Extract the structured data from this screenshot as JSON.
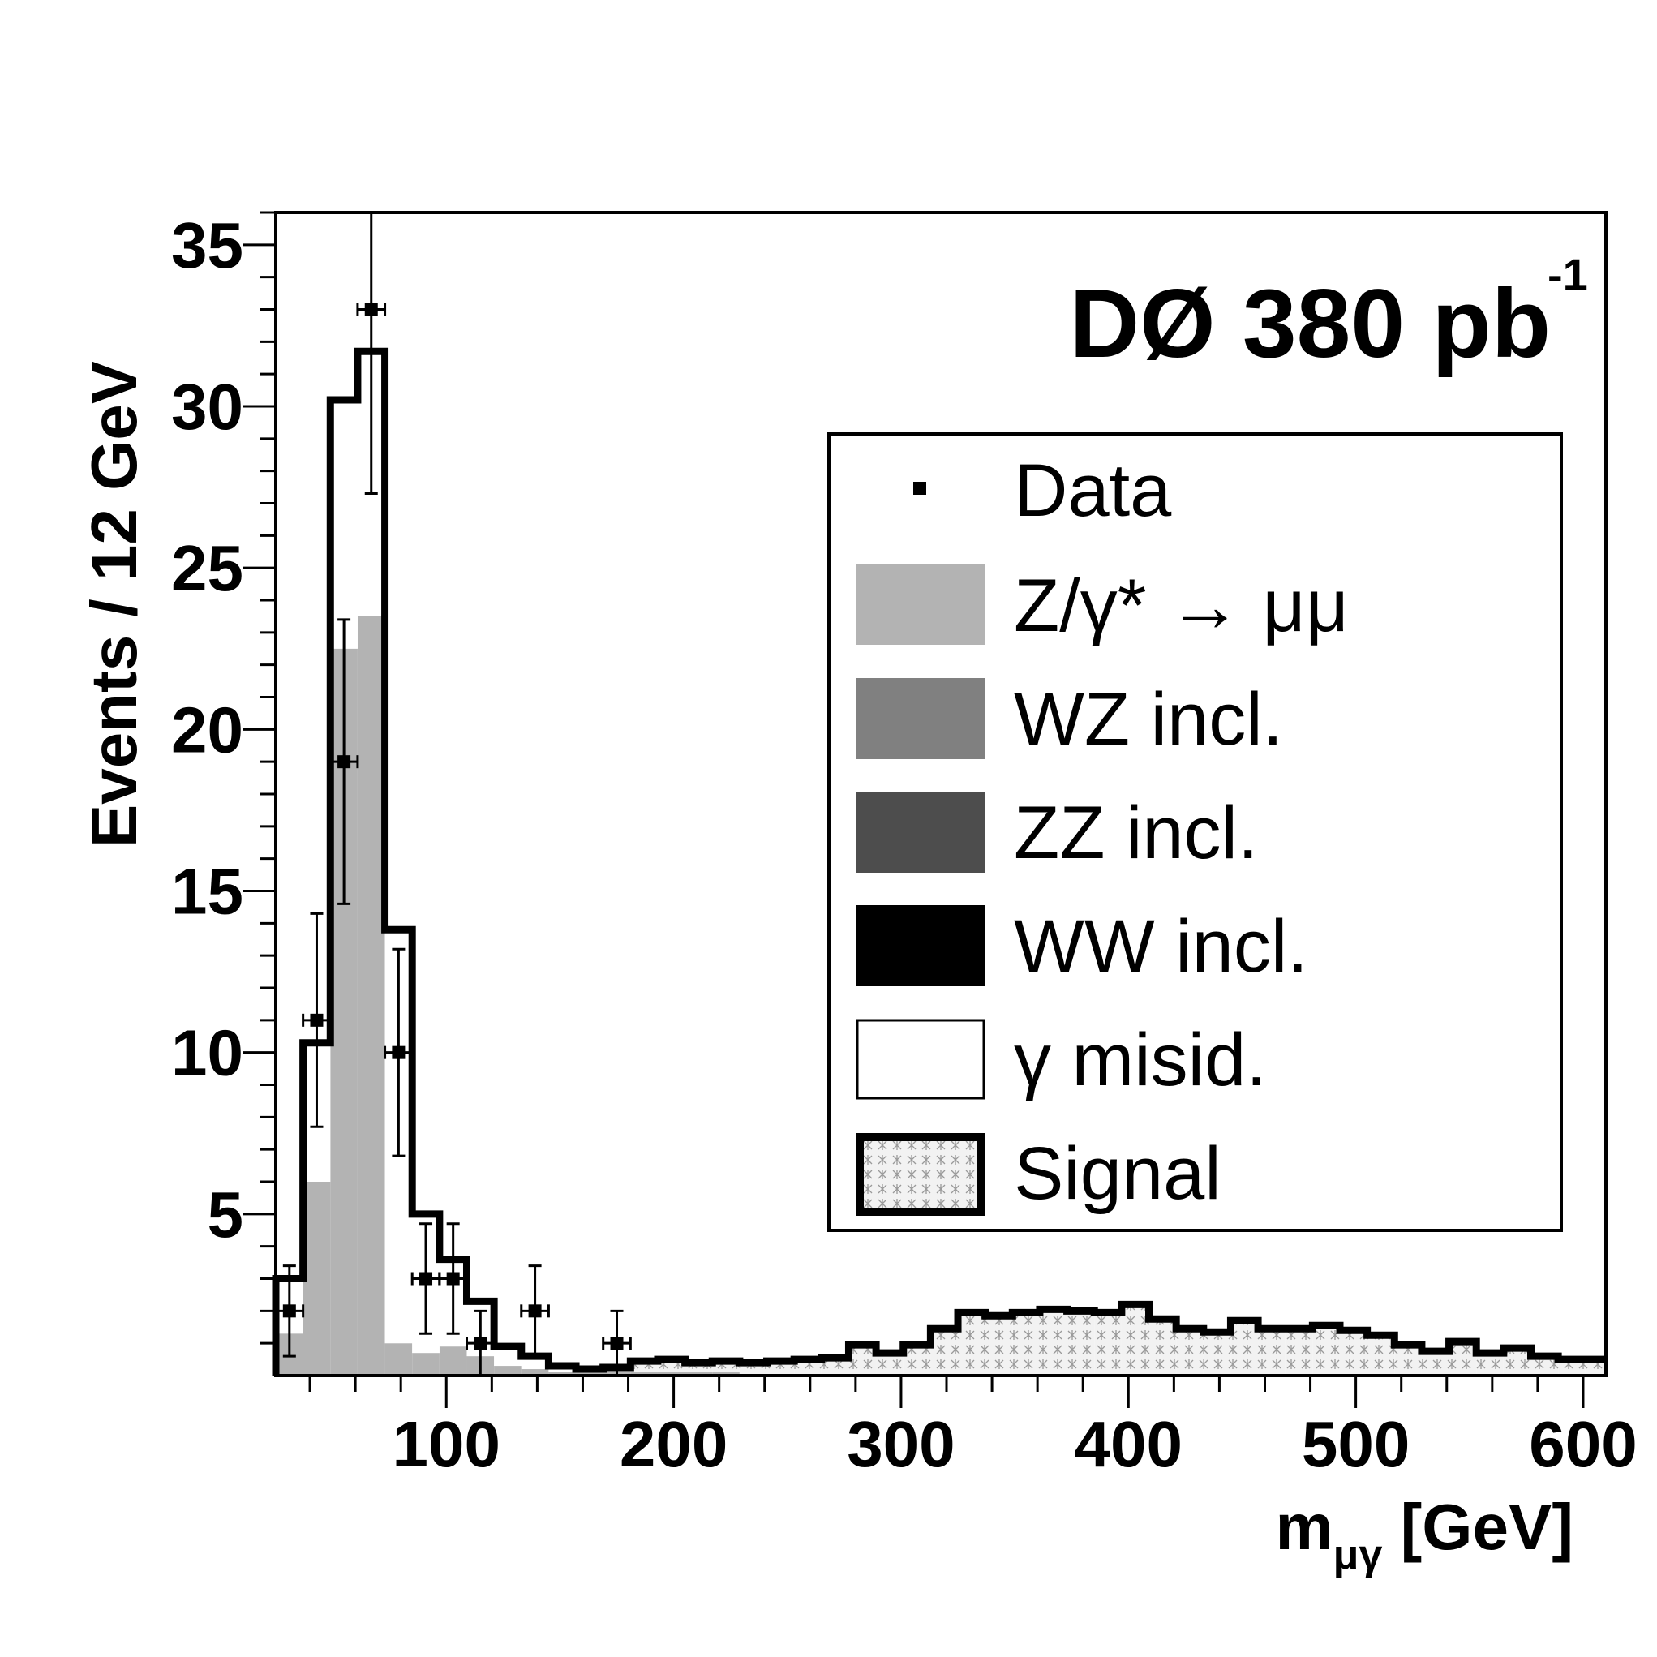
{
  "chart_data": {
    "type": "bar",
    "experiment_label": "DØ 380 pb",
    "experiment_label_sup": "-1",
    "xlabel": "m",
    "xlabel_sub": "μγ",
    "xlabel_unit": "[GeV]",
    "ylabel": "Events / 12 GeV",
    "xlim": [
      25,
      610
    ],
    "ylim": [
      0,
      36
    ],
    "x_ticks": [
      100,
      200,
      300,
      400,
      500,
      600
    ],
    "y_ticks": [
      5,
      10,
      15,
      20,
      25,
      30,
      35
    ],
    "bin_width": 12,
    "bin_edges": [
      25,
      37,
      49,
      61,
      73,
      85,
      97,
      109,
      121,
      133,
      145,
      157,
      169,
      181,
      193,
      205,
      217,
      229,
      241,
      253,
      265,
      277,
      289,
      301,
      313,
      325,
      337,
      349,
      361,
      373,
      385,
      397,
      409,
      421,
      433,
      445,
      457,
      469,
      481,
      493,
      505,
      517,
      529,
      541,
      553,
      565,
      577,
      589,
      601,
      613
    ],
    "series": [
      {
        "name": "Z/γ* → μμ",
        "color": "#b3b3b3",
        "values": [
          1.3,
          6.0,
          22.5,
          23.5,
          1.0,
          0.7,
          0.9,
          0.6,
          0.3,
          0.2,
          0.1,
          0.1,
          0.1,
          0.1,
          0.1,
          0.1,
          0.1,
          0,
          0,
          0,
          0,
          0,
          0,
          0,
          0,
          0,
          0,
          0,
          0,
          0,
          0,
          0,
          0,
          0,
          0,
          0,
          0,
          0,
          0,
          0,
          0,
          0,
          0,
          0,
          0,
          0,
          0,
          0,
          0
        ]
      },
      {
        "name": "WZ incl.",
        "color": "#808080",
        "values": [
          0,
          0,
          0,
          0,
          0,
          0,
          0,
          0,
          0,
          0,
          0,
          0,
          0,
          0,
          0,
          0,
          0,
          0,
          0,
          0,
          0,
          0,
          0,
          0,
          0,
          0,
          0,
          0,
          0,
          0,
          0,
          0,
          0,
          0,
          0,
          0,
          0,
          0,
          0,
          0,
          0,
          0,
          0,
          0,
          0,
          0,
          0,
          0,
          0
        ]
      },
      {
        "name": "ZZ incl.",
        "color": "#4d4d4d",
        "values": [
          0,
          0,
          0,
          0,
          0,
          0,
          0,
          0,
          0,
          0,
          0,
          0,
          0,
          0,
          0,
          0,
          0,
          0,
          0,
          0,
          0,
          0,
          0,
          0,
          0,
          0,
          0,
          0,
          0,
          0,
          0,
          0,
          0,
          0,
          0,
          0,
          0,
          0,
          0,
          0,
          0,
          0,
          0,
          0,
          0,
          0,
          0,
          0,
          0
        ]
      },
      {
        "name": "WW incl.",
        "color": "#000000",
        "values": [
          0,
          0,
          0,
          0,
          0,
          0,
          0,
          0,
          0,
          0,
          0,
          0,
          0,
          0,
          0,
          0,
          0,
          0,
          0,
          0,
          0,
          0,
          0,
          0,
          0,
          0,
          0,
          0,
          0,
          0,
          0,
          0,
          0,
          0,
          0,
          0,
          0,
          0,
          0,
          0,
          0,
          0,
          0,
          0,
          0,
          0,
          0,
          0,
          0
        ]
      },
      {
        "name": "γ misid.",
        "color": "#ffffff",
        "values": [
          1.7,
          4.3,
          7.7,
          8.2,
          12.8,
          4.3,
          2.7,
          1.7,
          0.6,
          0.4,
          0.2,
          0.1,
          0,
          0,
          0,
          0,
          0,
          0,
          0,
          0,
          0,
          0,
          0,
          0,
          0,
          0,
          0,
          0,
          0,
          0,
          0,
          0,
          0,
          0,
          0,
          0,
          0,
          0,
          0,
          0,
          0,
          0,
          0,
          0,
          0,
          0,
          0,
          0,
          0
        ]
      },
      {
        "name": "Signal",
        "color": "#f2f2f2",
        "values": [
          0,
          0,
          0,
          0,
          0,
          0,
          0,
          0,
          0,
          0,
          0,
          0,
          0.15,
          0.35,
          0.4,
          0.3,
          0.35,
          0.4,
          0.45,
          0.5,
          0.55,
          0.95,
          0.7,
          0.95,
          1.45,
          1.95,
          1.85,
          1.95,
          2.05,
          2.0,
          1.95,
          2.2,
          1.75,
          1.45,
          1.35,
          1.7,
          1.45,
          1.45,
          1.55,
          1.4,
          1.25,
          0.95,
          0.75,
          1.05,
          0.7,
          0.85,
          0.6,
          0.5,
          0.5
        ]
      }
    ],
    "data_points": {
      "name": "Data",
      "x": [
        31,
        43,
        55,
        67,
        79,
        91,
        103,
        115,
        139,
        175
      ],
      "y": [
        2,
        11,
        19,
        33,
        10,
        3,
        3,
        1,
        2,
        1
      ],
      "yerr": [
        1.4,
        3.3,
        4.4,
        5.7,
        3.2,
        1.7,
        1.7,
        1.0,
        1.4,
        1.0
      ],
      "xerr": 6
    },
    "legend_position": "top-right",
    "grid": false
  }
}
